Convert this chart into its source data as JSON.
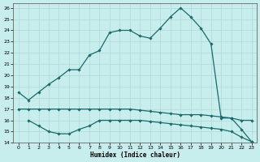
{
  "xlabel": "Humidex (Indice chaleur)",
  "xlim": [
    -0.5,
    23.5
  ],
  "ylim": [
    14,
    26.4
  ],
  "x_ticks": [
    0,
    1,
    2,
    3,
    4,
    5,
    6,
    7,
    8,
    9,
    10,
    11,
    12,
    13,
    14,
    15,
    16,
    17,
    18,
    19,
    20,
    21,
    22,
    23
  ],
  "yticks": [
    14,
    15,
    16,
    17,
    18,
    19,
    20,
    21,
    22,
    23,
    24,
    25,
    26
  ],
  "background_color": "#c8eded",
  "grid_color": "#b0d8d8",
  "line_color": "#1a6b6b",
  "line1_x": [
    0,
    1,
    2,
    3,
    4,
    5,
    6,
    7,
    8,
    9,
    10,
    11,
    12,
    13,
    14,
    15,
    16,
    17,
    18,
    19,
    20,
    21,
    22,
    23
  ],
  "line1_y": [
    18.5,
    17.8,
    18.5,
    19.2,
    19.8,
    20.5,
    20.5,
    21.8,
    22.2,
    23.8,
    24.0,
    24.0,
    23.5,
    23.3,
    24.2,
    25.2,
    26.0,
    25.2,
    24.2,
    22.8,
    16.2,
    16.2,
    15.2,
    14.1
  ],
  "line2_x": [
    0,
    1,
    2,
    3,
    4,
    5,
    6,
    7,
    8,
    9,
    10,
    11,
    12,
    13,
    14,
    15,
    16,
    17,
    18,
    19,
    20,
    21,
    22,
    23
  ],
  "line2_y": [
    17.0,
    17.0,
    17.0,
    17.0,
    17.0,
    17.0,
    17.0,
    17.0,
    17.0,
    17.0,
    17.0,
    17.0,
    16.9,
    16.8,
    16.7,
    16.6,
    16.5,
    16.5,
    16.5,
    16.4,
    16.3,
    16.2,
    16.0,
    16.0
  ],
  "line3_x": [
    1,
    2,
    3,
    4,
    5,
    6,
    7,
    8,
    9,
    10,
    11,
    12,
    13,
    14,
    15,
    16,
    17,
    18,
    19,
    20,
    21,
    22,
    23
  ],
  "line3_y": [
    16.0,
    15.5,
    15.0,
    14.8,
    14.8,
    15.2,
    15.5,
    16.0,
    16.0,
    16.0,
    16.0,
    16.0,
    15.9,
    15.8,
    15.7,
    15.6,
    15.5,
    15.4,
    15.3,
    15.2,
    15.0,
    14.5,
    14.1
  ]
}
